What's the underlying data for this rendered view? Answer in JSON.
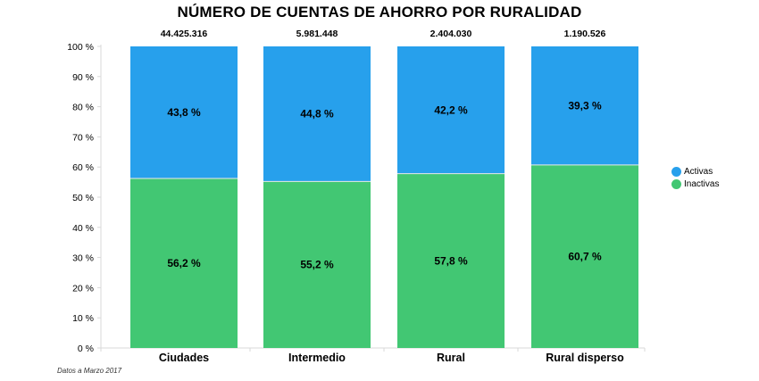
{
  "chart_data": {
    "type": "bar",
    "stacked": true,
    "title": "NÚMERO DE CUENTAS DE AHORRO POR RURALIDAD",
    "categories": [
      "Ciudades",
      "Intermedio",
      "Rural",
      "Rural disperso"
    ],
    "totals": [
      "44.425.316",
      "5.981.448",
      "2.404.030",
      "1.190.526"
    ],
    "series": [
      {
        "name": "Inactivas",
        "color": "#42c773",
        "values": [
          56.2,
          55.2,
          57.8,
          60.7
        ],
        "labels": [
          "56,2 %",
          "55,2 %",
          "57,8 %",
          "60,7 %"
        ]
      },
      {
        "name": "Activas",
        "color": "#27a0ec",
        "values": [
          43.8,
          44.8,
          42.2,
          39.3
        ],
        "labels": [
          "43,8 %",
          "44,8 %",
          "42,2 %",
          "39,3 %"
        ]
      }
    ],
    "yticks": [
      0,
      10,
      20,
      30,
      40,
      50,
      60,
      70,
      80,
      90,
      100
    ],
    "ytick_labels": [
      "0 %",
      "10 %",
      "20 %",
      "30 %",
      "40 %",
      "50 %",
      "60 %",
      "70 %",
      "80 %",
      "90 %",
      "100 %"
    ],
    "ylim": [
      0,
      100
    ],
    "xlabel": "",
    "ylabel": "",
    "legend_position": "right"
  },
  "legend": {
    "items": [
      {
        "label": "Activas",
        "color": "#27a0ec"
      },
      {
        "label": "Inactivas",
        "color": "#42c773"
      }
    ]
  },
  "footnote": "Datos a Marzo 2017"
}
